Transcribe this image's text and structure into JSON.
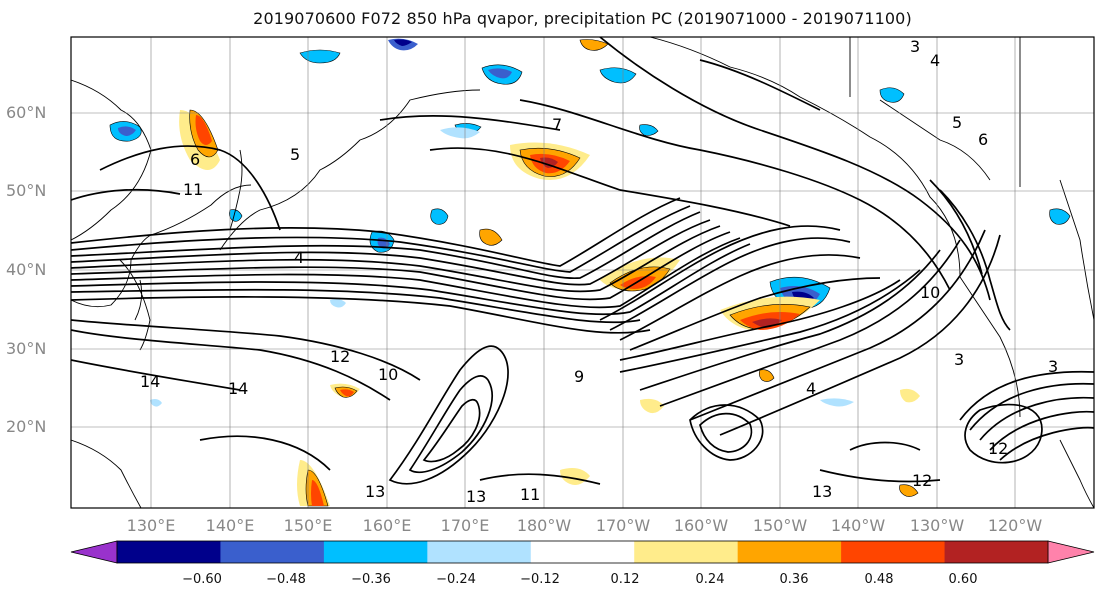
{
  "title": "2019070600 F072 850 hPa qvapor, precipitation PC (2019071000 - 2019071100)",
  "latitude_labels": [
    "60°N",
    "50°N",
    "40°N",
    "30°N",
    "20°N"
  ],
  "longitude_labels": [
    "130°E",
    "140°E",
    "150°E",
    "160°E",
    "170°E",
    "180°W",
    "170°W",
    "160°W",
    "150°W",
    "140°W",
    "130°W",
    "120°W"
  ],
  "contour_labels": [
    "4",
    "5",
    "6",
    "7",
    "9",
    "10",
    "11",
    "12",
    "13",
    "14",
    "3",
    "3",
    "4",
    "5",
    "6",
    "10",
    "12",
    "13",
    "13",
    "14",
    "11",
    "4",
    "3",
    "12"
  ],
  "colorbar": {
    "colors": [
      "#9932cc",
      "#00008b",
      "#3a5fcd",
      "#00bfff",
      "#b0e2ff",
      "#ffffff",
      "#ffec8b",
      "#ffa500",
      "#ff4500",
      "#b22222",
      "#ff82ab"
    ],
    "tick_labels": [
      "−0.60",
      "−0.48",
      "−0.36",
      "−0.24",
      "−0.12",
      "0.12",
      "0.24",
      "0.36",
      "0.48",
      "0.60"
    ]
  },
  "colors": {
    "coast": "#000000",
    "grid": "#808080",
    "contour": "#000000"
  }
}
